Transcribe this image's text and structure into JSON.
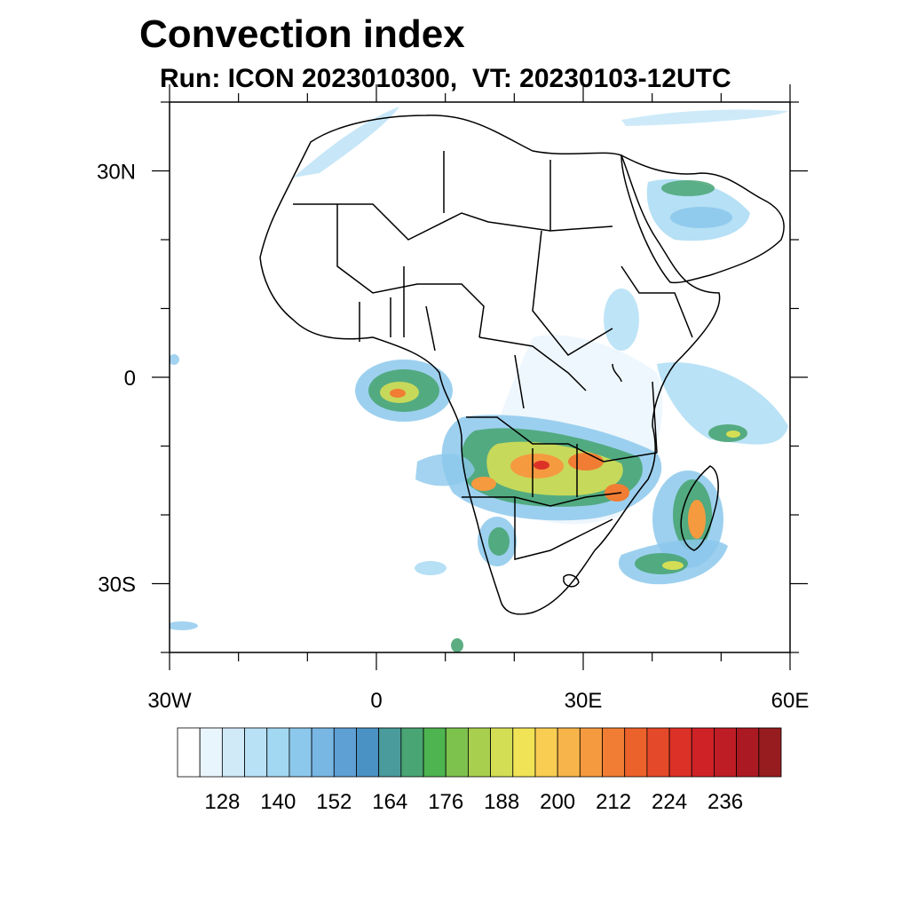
{
  "title": "Convection index",
  "subtitle": "Run: ICON 2023010300,  VT: 20230103-12UTC",
  "map": {
    "lon_range": [
      -30,
      60
    ],
    "lat_range": [
      -40,
      40
    ],
    "x_ticks": [
      {
        "value": -30,
        "label": "30W"
      },
      {
        "value": 0,
        "label": "0"
      },
      {
        "value": 30,
        "label": "30E"
      },
      {
        "value": 60,
        "label": "60E"
      }
    ],
    "y_ticks": [
      {
        "value": 30,
        "label": "30N"
      },
      {
        "value": 0,
        "label": "0"
      },
      {
        "value": -30,
        "label": "30S"
      }
    ],
    "minor_x_step": 10,
    "minor_y_step": 10
  },
  "colorbar": {
    "colors": [
      "#ffffff",
      "#e9f5fc",
      "#d0eaf8",
      "#b9e1f6",
      "#a3d8f3",
      "#8cc8ec",
      "#78b6e4",
      "#5e9fd4",
      "#4a92c4",
      "#4a9b9b",
      "#4aa574",
      "#4db44f",
      "#7dc24d",
      "#a8cf4e",
      "#d4de55",
      "#f0e356",
      "#f8cd52",
      "#f7b44a",
      "#f59a3f",
      "#f07d33",
      "#ec622b",
      "#e44a29",
      "#dc3127",
      "#cf2227",
      "#be1d26",
      "#ab1a23",
      "#961c1f"
    ],
    "labels": [
      "128",
      "140",
      "152",
      "164",
      "176",
      "188",
      "200",
      "212",
      "224",
      "236"
    ]
  }
}
